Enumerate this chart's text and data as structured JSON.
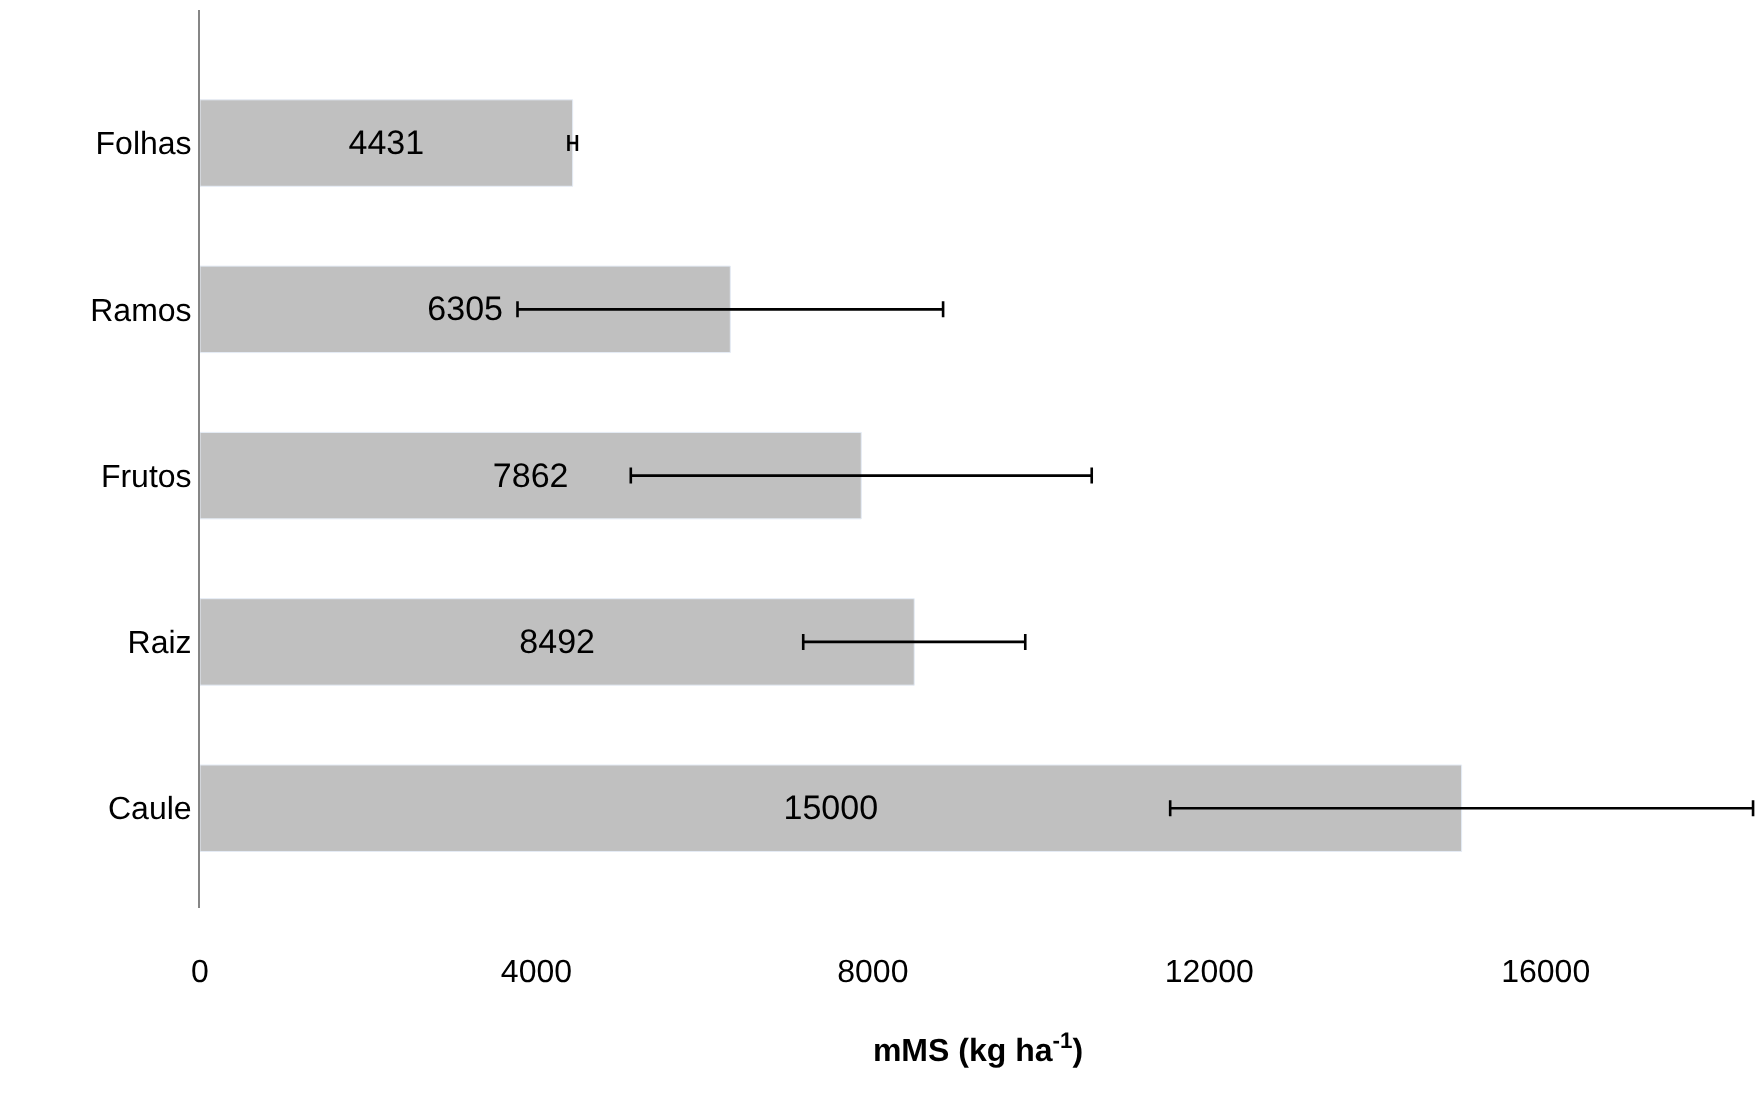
{
  "chart_data": {
    "type": "bar",
    "orientation": "horizontal",
    "xlabel": "mMS (kg ha$^{-1}$)",
    "categories": [
      "Folhas",
      "Ramos",
      "Frutos",
      "Raiz",
      "Caule"
    ],
    "values": [
      4431,
      6305,
      7862,
      8492,
      15000
    ],
    "errors": [
      50,
      2530,
      2740,
      1320,
      3465
    ],
    "color": "#c0c0c0",
    "data_labels": true,
    "xlim": [
      0,
      18500
    ],
    "xticks": [
      0,
      4000,
      8000,
      12000,
      16000
    ],
    "legend": false
  }
}
